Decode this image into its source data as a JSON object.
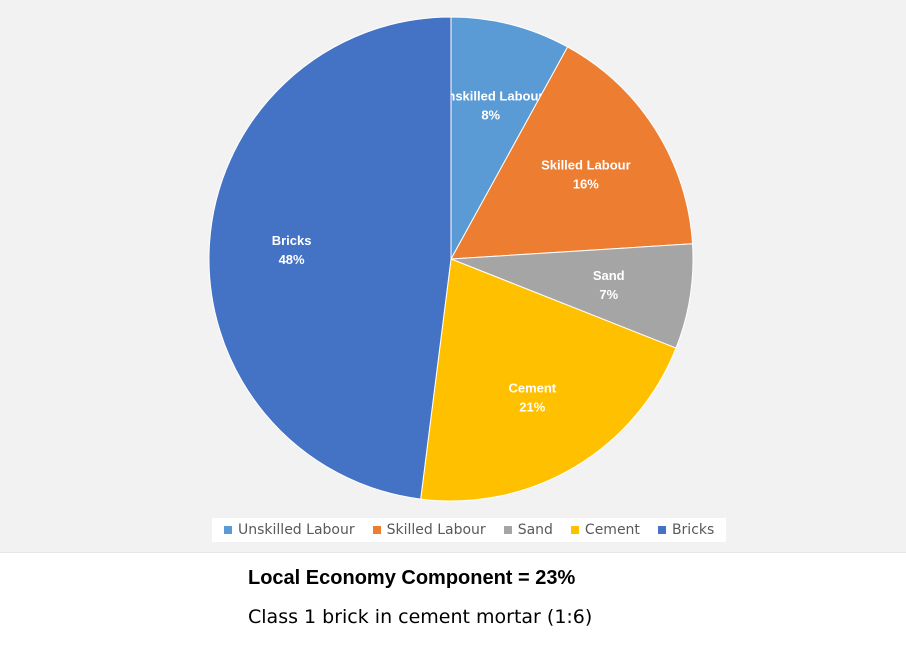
{
  "chart_data": {
    "type": "pie",
    "categories": [
      "Unskilled Labour",
      "Skilled Labour",
      "Sand",
      "Cement",
      "Bricks"
    ],
    "values": [
      8,
      16,
      7,
      21,
      48
    ],
    "value_labels": [
      "8%",
      "16%",
      "7%",
      "21%",
      "48%"
    ],
    "colors": [
      "#5b9bd5",
      "#ed7d31",
      "#a5a5a5",
      "#ffc000",
      "#4472c4"
    ],
    "start_angle_deg": 0,
    "direction": "clockwise",
    "data_labels": "inside",
    "legend": {
      "position": "bottom",
      "entries": [
        "Unskilled Labour",
        "Skilled Labour",
        "Sand",
        "Cement",
        "Bricks"
      ]
    },
    "background": "#f2f2f2"
  },
  "caption": {
    "title": "Local Economy Component = 23%",
    "subtitle": "Class 1 brick in cement mortar (1:6)"
  }
}
